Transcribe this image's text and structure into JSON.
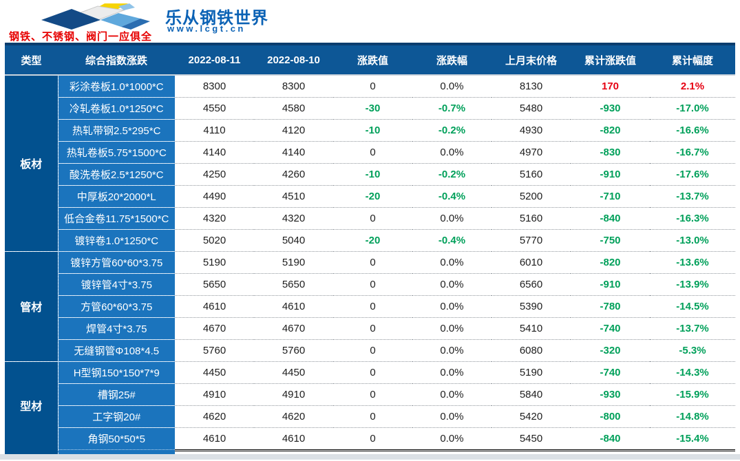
{
  "banner": {
    "brand_name": "乐从钢铁世界",
    "brand_url": "www.lcgt.cn",
    "tagline": "钢铁、不锈钢、阀门一应俱全"
  },
  "table": {
    "columns": [
      "类型",
      "综合指数涨跌",
      "2022-08-11",
      "2022-08-10",
      "涨跌值",
      "涨跌幅",
      "上月末价格",
      "累计涨跌值",
      "累计幅度"
    ],
    "groups": [
      {
        "category": "板材",
        "rows": [
          {
            "name": "彩涂卷板1.0*1000*C",
            "d1": "8300",
            "d2": "8300",
            "chg": "0",
            "chg_pct": "0.0%",
            "prev": "8130",
            "cum": "170",
            "cum_pct": "2.1%"
          },
          {
            "name": "冷轧卷板1.0*1250*C",
            "d1": "4550",
            "d2": "4580",
            "chg": "-30",
            "chg_pct": "-0.7%",
            "prev": "5480",
            "cum": "-930",
            "cum_pct": "-17.0%"
          },
          {
            "name": "热轧带钢2.5*295*C",
            "d1": "4110",
            "d2": "4120",
            "chg": "-10",
            "chg_pct": "-0.2%",
            "prev": "4930",
            "cum": "-820",
            "cum_pct": "-16.6%"
          },
          {
            "name": "热轧卷板5.75*1500*C",
            "d1": "4140",
            "d2": "4140",
            "chg": "0",
            "chg_pct": "0.0%",
            "prev": "4970",
            "cum": "-830",
            "cum_pct": "-16.7%"
          },
          {
            "name": "酸洗卷板2.5*1250*C",
            "d1": "4250",
            "d2": "4260",
            "chg": "-10",
            "chg_pct": "-0.2%",
            "prev": "5160",
            "cum": "-910",
            "cum_pct": "-17.6%"
          },
          {
            "name": "中厚板20*2000*L",
            "d1": "4490",
            "d2": "4510",
            "chg": "-20",
            "chg_pct": "-0.4%",
            "prev": "5200",
            "cum": "-710",
            "cum_pct": "-13.7%"
          },
          {
            "name": "低合金卷11.75*1500*C",
            "d1": "4320",
            "d2": "4320",
            "chg": "0",
            "chg_pct": "0.0%",
            "prev": "5160",
            "cum": "-840",
            "cum_pct": "-16.3%"
          },
          {
            "name": "镀锌卷1.0*1250*C",
            "d1": "5020",
            "d2": "5040",
            "chg": "-20",
            "chg_pct": "-0.4%",
            "prev": "5770",
            "cum": "-750",
            "cum_pct": "-13.0%"
          }
        ]
      },
      {
        "category": "管材",
        "rows": [
          {
            "name": "镀锌方管60*60*3.75",
            "d1": "5190",
            "d2": "5190",
            "chg": "0",
            "chg_pct": "0.0%",
            "prev": "6010",
            "cum": "-820",
            "cum_pct": "-13.6%"
          },
          {
            "name": "镀锌管4寸*3.75",
            "d1": "5650",
            "d2": "5650",
            "chg": "0",
            "chg_pct": "0.0%",
            "prev": "6560",
            "cum": "-910",
            "cum_pct": "-13.9%"
          },
          {
            "name": "方管60*60*3.75",
            "d1": "4610",
            "d2": "4610",
            "chg": "0",
            "chg_pct": "0.0%",
            "prev": "5390",
            "cum": "-780",
            "cum_pct": "-14.5%"
          },
          {
            "name": "焊管4寸*3.75",
            "d1": "4670",
            "d2": "4670",
            "chg": "0",
            "chg_pct": "0.0%",
            "prev": "5410",
            "cum": "-740",
            "cum_pct": "-13.7%"
          },
          {
            "name": "无缝钢管Φ108*4.5",
            "d1": "5760",
            "d2": "5760",
            "chg": "0",
            "chg_pct": "0.0%",
            "prev": "6080",
            "cum": "-320",
            "cum_pct": "-5.3%"
          }
        ]
      },
      {
        "category": "型材",
        "rows": [
          {
            "name": "H型钢150*150*7*9",
            "d1": "4450",
            "d2": "4450",
            "chg": "0",
            "chg_pct": "0.0%",
            "prev": "5190",
            "cum": "-740",
            "cum_pct": "-14.3%"
          },
          {
            "name": "槽钢25#",
            "d1": "4910",
            "d2": "4910",
            "chg": "0",
            "chg_pct": "0.0%",
            "prev": "5840",
            "cum": "-930",
            "cum_pct": "-15.9%"
          },
          {
            "name": "工字钢20#",
            "d1": "4620",
            "d2": "4620",
            "chg": "0",
            "chg_pct": "0.0%",
            "prev": "5420",
            "cum": "-800",
            "cum_pct": "-14.8%"
          },
          {
            "name": "角钢50*50*5",
            "d1": "4610",
            "d2": "4610",
            "chg": "0",
            "chg_pct": "0.0%",
            "prev": "5450",
            "cum": "-840",
            "cum_pct": "-15.4%"
          }
        ]
      }
    ]
  },
  "colors": {
    "header_bg": "#0d5796",
    "category_bg": "#02518f",
    "label_bg": "#1b74bd",
    "up_red": "#e60012",
    "down_green": "#00a05a",
    "brand_blue": "#0b62b5",
    "tagline_red": "#e60000",
    "top_rule": "#0b3d6e",
    "page_strip": "#dbe0e5"
  }
}
